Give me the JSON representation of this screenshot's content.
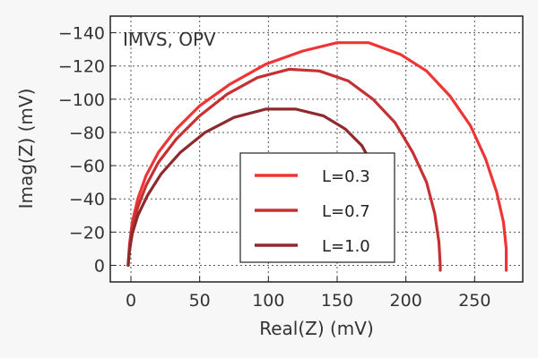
{
  "chart_data": {
    "type": "line",
    "xlabel": "Real(Z) (mV)",
    "ylabel": "Imag(Z) (mV)",
    "annotation": "IMVS, OPV",
    "xlim": [
      -15,
      285
    ],
    "ylim": [
      10,
      -150
    ],
    "x_ticks": [
      0,
      50,
      100,
      150,
      200,
      250
    ],
    "x_tick_labels": [
      "0",
      "50",
      "100",
      "150",
      "200",
      "250"
    ],
    "y_ticks": [
      0,
      -20,
      -40,
      -60,
      -80,
      -100,
      -120,
      -140
    ],
    "y_tick_labels": [
      "0",
      "−20",
      "−40",
      "−60",
      "−80",
      "−100",
      "−120",
      "−140"
    ],
    "grid": true,
    "legend_position": "bottom-right",
    "series": [
      {
        "name": "L=0.3",
        "color": "#ee3535",
        "x": [
          -2,
          -1,
          1,
          5,
          11,
          20,
          33,
          50,
          72,
          98,
          125,
          150,
          173,
          196,
          215,
          232,
          247,
          258,
          266,
          271,
          273,
          273,
          273
        ],
        "y": [
          0,
          -13,
          -26,
          -40,
          -54,
          -68,
          -82,
          -96,
          -109,
          -121,
          -129,
          -134,
          -134,
          -127,
          -117,
          -102,
          -84,
          -64,
          -44,
          -26,
          -10,
          0,
          3
        ]
      },
      {
        "name": "L=0.7",
        "color": "#c53133",
        "x": [
          -2,
          -1,
          1,
          5,
          11,
          20,
          33,
          50,
          70,
          92,
          115,
          137,
          158,
          176,
          192,
          205,
          215,
          221,
          224,
          225,
          225
        ],
        "y": [
          0,
          -11,
          -23,
          -35,
          -48,
          -62,
          -76,
          -90,
          -103,
          -113,
          -118,
          -117,
          -111,
          -100,
          -86,
          -68,
          -50,
          -31,
          -14,
          0,
          3
        ]
      },
      {
        "name": "L=1.0",
        "color": "#8e2a2e",
        "x": [
          -2,
          -1,
          1,
          5,
          12,
          22,
          36,
          54,
          75,
          98,
          120,
          140,
          156,
          168,
          176,
          181
        ],
        "y": [
          0,
          -9,
          -19,
          -30,
          -42,
          -55,
          -68,
          -80,
          -89,
          -94,
          -94,
          -90,
          -82,
          -72,
          -60,
          -46
        ]
      }
    ]
  }
}
